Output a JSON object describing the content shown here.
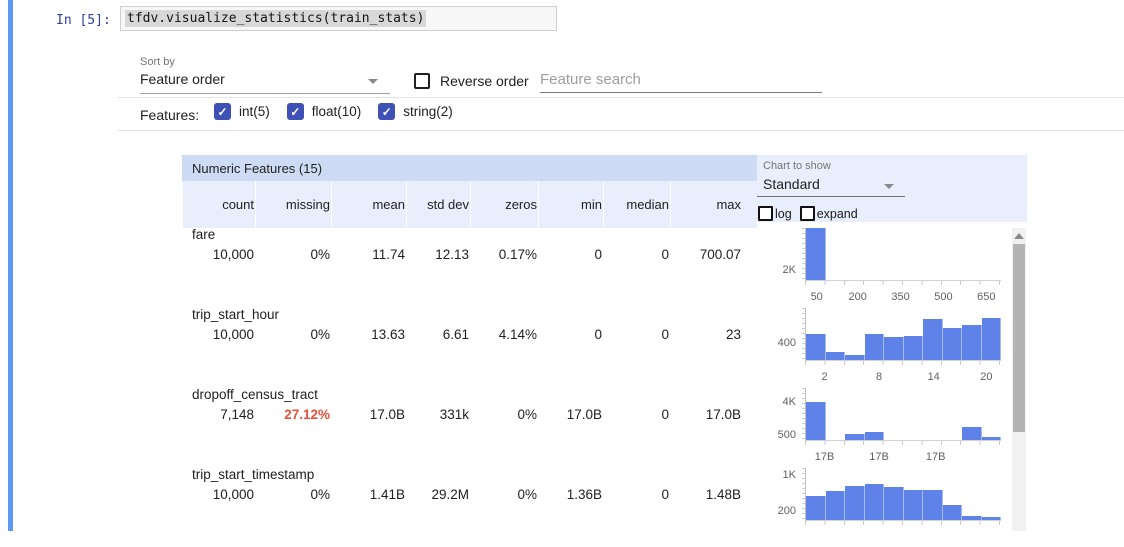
{
  "notebook": {
    "prompt": "In [5]:",
    "code": "tfdv.visualize_statistics(train_stats)"
  },
  "controls": {
    "sort_by_label": "Sort by",
    "sort_by_value": "Feature order",
    "reverse_order_label": "Reverse order",
    "search_placeholder": "Feature search",
    "features_label": "Features:",
    "feature_types": [
      {
        "label": "int(5)",
        "checked": true
      },
      {
        "label": "float(10)",
        "checked": true
      },
      {
        "label": "string(2)",
        "checked": true
      }
    ]
  },
  "chart_controls": {
    "label": "Chart to show",
    "value": "Standard",
    "options": [
      {
        "label": "log",
        "checked": false
      },
      {
        "label": "expand",
        "checked": false
      }
    ]
  },
  "table": {
    "title": "Numeric Features (15)",
    "columns": [
      "count",
      "missing",
      "mean",
      "std dev",
      "zeros",
      "min",
      "median",
      "max"
    ],
    "rows": [
      {
        "name": "fare",
        "values": [
          "10,000",
          "0%",
          "11.74",
          "12.13",
          "0.17%",
          "0",
          "0",
          "700.07"
        ],
        "alert_col": -1
      },
      {
        "name": "trip_start_hour",
        "values": [
          "10,000",
          "0%",
          "13.63",
          "6.61",
          "4.14%",
          "0",
          "0",
          "23"
        ],
        "alert_col": -1
      },
      {
        "name": "dropoff_census_tract",
        "values": [
          "7,148",
          "27.12%",
          "17.0B",
          "331k",
          "0%",
          "17.0B",
          "0",
          "17.0B"
        ],
        "alert_col": 1
      },
      {
        "name": "trip_start_timestamp",
        "values": [
          "10,000",
          "0%",
          "1.41B",
          "29.2M",
          "0%",
          "1.36B",
          "0",
          "1.48B"
        ],
        "alert_col": -1
      }
    ]
  },
  "chart_data": [
    {
      "type": "bar",
      "feature": "fare",
      "values": [
        9900,
        30,
        20,
        12,
        8,
        6,
        5,
        4,
        3,
        12
      ],
      "ymax": 9900,
      "y_ticks": [
        {
          "label": "2K",
          "value": 2000
        }
      ],
      "x_ticks": [
        {
          "label": "50",
          "pos": 6
        },
        {
          "label": "200",
          "pos": 27
        },
        {
          "label": "350",
          "pos": 49
        },
        {
          "label": "500",
          "pos": 71
        },
        {
          "label": "650",
          "pos": 93
        }
      ]
    },
    {
      "type": "bar",
      "feature": "trip_start_hour",
      "values": [
        610,
        190,
        120,
        610,
        520,
        560,
        940,
        730,
        800,
        960
      ],
      "ymax": 1200,
      "y_ticks": [
        {
          "label": "400",
          "value": 400
        }
      ],
      "x_ticks": [
        {
          "label": "2",
          "pos": 10
        },
        {
          "label": "8",
          "pos": 38
        },
        {
          "label": "14",
          "pos": 66
        },
        {
          "label": "20",
          "pos": 93
        }
      ]
    },
    {
      "type": "bar",
      "feature": "dropoff_census_tract",
      "values": [
        4000,
        0,
        600,
        800,
        0,
        0,
        0,
        0,
        1400,
        350
      ],
      "ymax": 5500,
      "y_ticks": [
        {
          "label": "4K",
          "value": 4000
        },
        {
          "label": "500",
          "value": 500
        }
      ],
      "x_ticks": [
        {
          "label": "17B",
          "pos": 10
        },
        {
          "label": "17B",
          "pos": 38
        },
        {
          "label": "17B",
          "pos": 67
        }
      ]
    },
    {
      "type": "bar",
      "feature": "trip_start_timestamp",
      "values": [
        540,
        640,
        760,
        800,
        720,
        660,
        660,
        340,
        80,
        60
      ],
      "ymax": 1150,
      "y_ticks": [
        {
          "label": "1K",
          "value": 1000
        },
        {
          "label": "200",
          "value": 200
        }
      ],
      "x_ticks": []
    }
  ],
  "colors": {
    "cell_accent": "#5e97f6",
    "prompt": "#303f9f",
    "checkbox": "#3f51b5",
    "histogram_bar": "#5e82e8",
    "alert": "#e8503a",
    "table_title_bg": "#cddcf4",
    "table_header_bg": "#e8eefb"
  }
}
